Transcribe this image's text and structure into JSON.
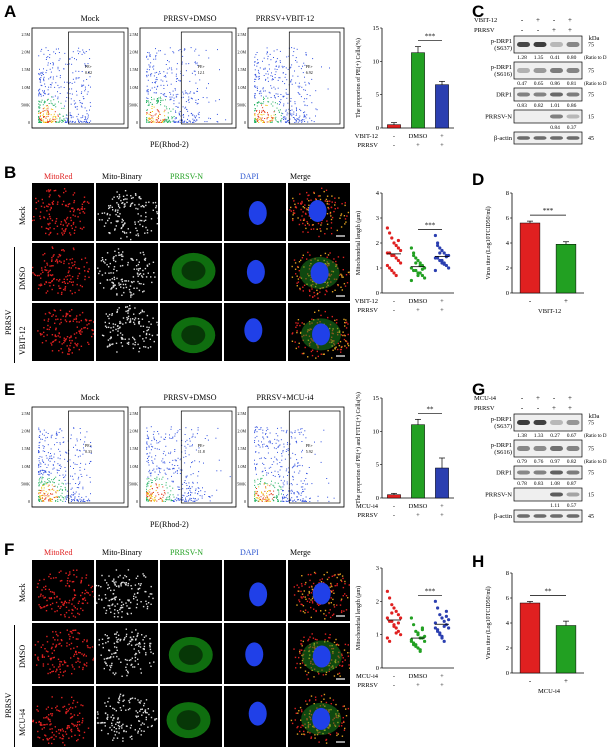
{
  "panels": {
    "A": {
      "label": "A",
      "facs_titles": [
        "Mock",
        "PRRSV+DMSO",
        "PRRSV+VBIT-12"
      ],
      "gate_label": "PE+",
      "gate_values": [
        "0.82",
        "12.1",
        "6.92"
      ],
      "xaxis": "PE(Rhod-2)",
      "y_ticks": [
        "2.5M",
        "2.0M",
        "1.5M",
        "1.0M",
        "500K",
        "0"
      ]
    },
    "B": {
      "label": "B",
      "col_titles": [
        "MitoRed",
        "Mito-Binary",
        "PRRSV-N",
        "DAPI",
        "Merge"
      ],
      "row_labels": [
        "Mock",
        "DMSO",
        "VBIT-12"
      ],
      "group_label": "PRRSV"
    },
    "C": {
      "label": "C",
      "header": {
        "vbit": "VBIT-12",
        "prrsv": "PRRSV",
        "kda": "kDa"
      },
      "signs_top": [
        "-",
        "+",
        "-",
        "+"
      ],
      "signs_bottom": [
        "-",
        "-",
        "+",
        "+"
      ],
      "rows": [
        {
          "name": "p-DRP1 (S637)",
          "kda": "75",
          "values": [
            "1.28",
            "1.35",
            "0.41",
            "0.80"
          ],
          "note": "(Ratio to DRP1)"
        },
        {
          "name": "p-DRP1 (S616)",
          "kda": "75",
          "values": [
            "0.47",
            "0.65",
            "0.86",
            "0.81"
          ],
          "note": "(Ratio to DRP1)"
        },
        {
          "name": "DRP1",
          "kda": "75",
          "values": [
            "0.83",
            "0.82",
            "1.01",
            "0.86"
          ],
          "note": ""
        },
        {
          "name": "PRRSV-N",
          "kda": "15",
          "values": [
            "",
            "",
            "0.84",
            "0.37"
          ],
          "note": ""
        },
        {
          "name": "β-actin",
          "kda": "45",
          "values": [],
          "note": ""
        }
      ]
    },
    "D": {
      "label": "D"
    },
    "E": {
      "label": "E",
      "facs_titles": [
        "Mock",
        "PRRSV+DMSO",
        "PRRSV+MCU-i4"
      ],
      "gate_label": "PE+",
      "gate_values": [
        "0.33",
        "11.8",
        "5.92"
      ],
      "xaxis": "PE(Rhod-2)",
      "y_ticks": [
        "2.5M",
        "2.0M",
        "1.5M",
        "1.0M",
        "500K",
        "0"
      ]
    },
    "F": {
      "label": "F",
      "col_titles": [
        "MitoRed",
        "Mito-Binary",
        "PRRSV-N",
        "DAPI",
        "Merge"
      ],
      "row_labels": [
        "Mock",
        "DMSO",
        "MCU-i4"
      ],
      "group_label": "PRRSV"
    },
    "G": {
      "label": "G",
      "header": {
        "vbit": "MCU-i4",
        "prrsv": "PRRSV",
        "kda": "kDa"
      },
      "signs_top": [
        "-",
        "+",
        "-",
        "+"
      ],
      "signs_bottom": [
        "-",
        "-",
        "+",
        "+"
      ],
      "rows": [
        {
          "name": "p-DRP1 (S637)",
          "kda": "75",
          "values": [
            "1.38",
            "1.33",
            "0.27",
            "0.67"
          ],
          "note": "(Ratio to DRP1)"
        },
        {
          "name": "p-DRP1 (S616)",
          "kda": "75",
          "values": [
            "0.79",
            "0.76",
            "0.97",
            "0.82"
          ],
          "note": "(Ratio to DRP1)"
        },
        {
          "name": "DRP1",
          "kda": "75",
          "values": [
            "0.78",
            "0.83",
            "1.08",
            "0.87"
          ],
          "note": ""
        },
        {
          "name": "PRRSV-N",
          "kda": "15",
          "values": [
            "",
            "",
            "1.11",
            "0.57"
          ],
          "note": ""
        },
        {
          "name": "β-actin",
          "kda": "45",
          "values": [],
          "note": ""
        }
      ]
    },
    "H": {
      "label": "H"
    }
  },
  "chart_data": [
    {
      "id": "A-bar",
      "type": "bar",
      "ylabel": "The proporion of PE(+) Cells(%)",
      "ylim": [
        0,
        15
      ],
      "yticks": [
        0,
        5,
        10,
        15
      ],
      "categories": [
        "-",
        "DMSO",
        "+"
      ],
      "values": [
        0.5,
        11.3,
        6.5
      ],
      "errors": [
        0.3,
        0.9,
        0.5
      ],
      "colors": [
        "#e02020",
        "#22a022",
        "#2b3fb0"
      ],
      "treatment_label": "VBIT-12",
      "treatment": [
        "-",
        "DMSO",
        "+"
      ],
      "prrsv_label": "PRRSV",
      "prrsv": [
        "-",
        "+",
        "+"
      ],
      "significance": "***"
    },
    {
      "id": "B-scatter",
      "type": "scatter",
      "ylabel": "Mitochondrial length (μm)",
      "ylim": [
        0,
        4
      ],
      "yticks": [
        0,
        1,
        2,
        3,
        4
      ],
      "categories": [
        "-",
        "DMSO",
        "+"
      ],
      "series": [
        {
          "values": [
            2.6,
            2.4,
            2.2,
            2.0,
            1.9,
            1.8,
            1.7,
            1.6,
            1.6,
            1.5,
            1.5,
            1.4,
            1.3,
            1.2,
            1.1,
            1.0,
            0.9,
            0.8,
            0.7,
            2.1
          ]
        },
        {
          "values": [
            1.8,
            1.6,
            1.4,
            1.3,
            1.2,
            1.1,
            1.0,
            1.0,
            0.9,
            0.9,
            0.8,
            0.8,
            0.7,
            0.6,
            0.5,
            1.5,
            1.2,
            0.7,
            1.1,
            0.95
          ]
        },
        {
          "values": [
            2.3,
            2.0,
            1.8,
            1.7,
            1.6,
            1.5,
            1.5,
            1.4,
            1.4,
            1.3,
            1.2,
            1.2,
            1.1,
            1.0,
            0.9,
            1.9,
            1.6,
            1.3,
            1.15,
            1.45
          ]
        }
      ],
      "colors": [
        "#e02020",
        "#22a022",
        "#2b3fb0"
      ],
      "treatment_label": "VBIT-12",
      "treatment": [
        "-",
        "DMSO",
        "+"
      ],
      "prrsv_label": "PRRSV",
      "prrsv": [
        "-",
        "+",
        "+"
      ],
      "significance": "***"
    },
    {
      "id": "D-bar",
      "type": "bar",
      "ylabel": "Virus titer (Log10TCID50/ml)",
      "ylim": [
        0,
        8
      ],
      "yticks": [
        0,
        2,
        4,
        6,
        8
      ],
      "categories": [
        "-",
        "+"
      ],
      "values": [
        5.6,
        3.9
      ],
      "errors": [
        0.15,
        0.2
      ],
      "colors": [
        "#e02020",
        "#22a022"
      ],
      "treatment_label": "VBIT-12",
      "significance": "***"
    },
    {
      "id": "E-bar",
      "type": "bar",
      "ylabel": "The proporion of PE(+) and FITC(+) Cells(%)",
      "ylim": [
        0,
        15
      ],
      "yticks": [
        0,
        5,
        10,
        15
      ],
      "categories": [
        "-",
        "DMSO",
        "+"
      ],
      "values": [
        0.5,
        11.0,
        4.5
      ],
      "errors": [
        0.2,
        0.8,
        1.5
      ],
      "colors": [
        "#e02020",
        "#22a022",
        "#2b3fb0"
      ],
      "treatment_label": "MCU-i4",
      "treatment": [
        "-",
        "DMSO",
        "+"
      ],
      "prrsv_label": "PRRSV",
      "prrsv": [
        "-",
        "+",
        "+"
      ],
      "significance": "**"
    },
    {
      "id": "F-scatter",
      "type": "scatter",
      "ylabel": "Mitochondrial length (μm)",
      "ylim": [
        0,
        3
      ],
      "yticks": [
        0,
        1,
        2,
        3
      ],
      "categories": [
        "-",
        "DMSO",
        "+"
      ],
      "series": [
        {
          "values": [
            2.3,
            2.1,
            1.9,
            1.8,
            1.7,
            1.6,
            1.5,
            1.5,
            1.4,
            1.4,
            1.3,
            1.2,
            1.1,
            1.0,
            0.9,
            0.8,
            1.65,
            1.25,
            1.05,
            1.35
          ]
        },
        {
          "values": [
            1.5,
            1.3,
            1.1,
            1.0,
            0.9,
            0.9,
            0.8,
            0.8,
            0.7,
            0.7,
            0.6,
            0.5,
            1.2,
            0.95,
            0.85,
            0.75,
            0.65,
            1.05,
            0.55,
            1.15
          ]
        },
        {
          "values": [
            2.0,
            1.8,
            1.6,
            1.5,
            1.4,
            1.3,
            1.2,
            1.2,
            1.1,
            1.0,
            0.9,
            0.8,
            1.7,
            1.45,
            1.35,
            1.15,
            1.05,
            0.95,
            1.25,
            1.55
          ]
        }
      ],
      "colors": [
        "#e02020",
        "#22a022",
        "#2b3fb0"
      ],
      "treatment_label": "MCU-i4",
      "treatment": [
        "-",
        "DMSO",
        "+"
      ],
      "prrsv_label": "PRRSV",
      "prrsv": [
        "-",
        "+",
        "+"
      ],
      "significance": "***"
    },
    {
      "id": "H-bar",
      "type": "bar",
      "ylabel": "Virus titer (Log10TCID50/ml)",
      "ylim": [
        0,
        8
      ],
      "yticks": [
        0,
        2,
        4,
        6,
        8
      ],
      "categories": [
        "-",
        "+"
      ],
      "values": [
        5.6,
        3.8
      ],
      "errors": [
        0.12,
        0.35
      ],
      "colors": [
        "#e02020",
        "#22a022"
      ],
      "treatment_label": "MCU-i4",
      "significance": "**"
    }
  ]
}
